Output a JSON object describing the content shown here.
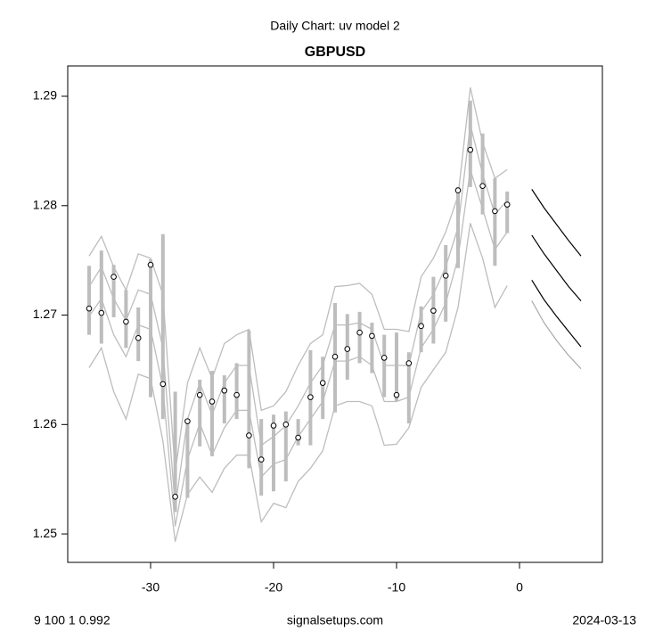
{
  "chart_data": {
    "type": "band-forecast",
    "subtitle": "Daily Chart: uv model 2",
    "title": "GBPUSD",
    "footer_left": "9 100 1 0.992",
    "footer_center": "signalsetups.com",
    "footer_right": "2024-03-13",
    "xlim": [
      -36.74,
      6.74
    ],
    "xticks": [
      -30,
      -20,
      -10,
      0
    ],
    "ylim": [
      1.2474,
      1.29277
    ],
    "yticks": [
      1.25,
      1.26,
      1.27,
      1.28,
      1.29
    ],
    "x": [
      -35,
      -34,
      -33,
      -32,
      -31,
      -30,
      -29,
      -28,
      -27,
      -26,
      -25,
      -24,
      -23,
      -22,
      -21,
      -20,
      -19,
      -18,
      -17,
      -16,
      -15,
      -14,
      -13,
      -12,
      -11,
      -10,
      -9,
      -8,
      -7,
      -6,
      -5,
      -4,
      -3,
      -2,
      -1
    ],
    "close": [
      1.2706,
      1.2702,
      1.2735,
      1.2694,
      1.2679,
      1.2746,
      1.2637,
      1.2534,
      1.2603,
      1.2627,
      1.2621,
      1.2631,
      1.2627,
      1.259,
      1.2568,
      1.2599,
      1.26,
      1.2588,
      1.2625,
      1.2638,
      1.2662,
      1.2669,
      1.2684,
      1.2681,
      1.2661,
      1.2627,
      1.2656,
      1.269,
      1.2704,
      1.2736,
      1.2814,
      1.2851,
      1.2818,
      1.2795,
      1.2801
    ],
    "high": [
      1.2745,
      1.2759,
      1.2746,
      1.2723,
      1.2707,
      1.2751,
      1.2774,
      1.263,
      1.2605,
      1.2641,
      1.2649,
      1.2645,
      1.2656,
      1.2686,
      1.2605,
      1.2609,
      1.2612,
      1.2605,
      1.2668,
      1.2662,
      1.2711,
      1.2701,
      1.2703,
      1.2693,
      1.2682,
      1.2684,
      1.2666,
      1.2708,
      1.2735,
      1.2764,
      1.2817,
      1.2896,
      1.2866,
      1.2825,
      1.2813
    ],
    "low": [
      1.2682,
      1.2674,
      1.2698,
      1.267,
      1.2658,
      1.2625,
      1.2605,
      1.252,
      1.2533,
      1.258,
      1.2571,
      1.2601,
      1.2605,
      1.256,
      1.2535,
      1.2539,
      1.2548,
      1.2581,
      1.2581,
      1.2605,
      1.2611,
      1.2641,
      1.2656,
      1.2647,
      1.2625,
      1.2621,
      1.2601,
      1.2666,
      1.2674,
      1.2694,
      1.2743,
      1.2817,
      1.2792,
      1.2745,
      1.2775
    ],
    "bands": [
      [
        1.2754,
        1.2772,
        1.2744,
        1.2723,
        1.2756,
        1.2752,
        1.2719,
        1.2556,
        1.2638,
        1.267,
        1.2642,
        1.2674,
        1.2682,
        1.2687,
        1.2613,
        1.2617,
        1.263,
        1.2654,
        1.2674,
        1.2682,
        1.2726,
        1.2727,
        1.2729,
        1.2719,
        1.2687,
        1.2687,
        1.2685,
        1.2735,
        1.2752,
        1.2776,
        1.2809,
        1.2908,
        1.2858,
        1.2825,
        1.2833
      ],
      [
        1.2726,
        1.2744,
        1.2715,
        1.2695,
        1.2723,
        1.2719,
        1.267,
        1.2524,
        1.2605,
        1.2638,
        1.2609,
        1.2638,
        1.2654,
        1.2654,
        1.2581,
        1.2589,
        1.2599,
        1.2617,
        1.2638,
        1.2654,
        1.2691,
        1.2691,
        1.2693,
        1.2687,
        1.2654,
        1.2654,
        1.2654,
        1.2703,
        1.2719,
        1.2744,
        1.278,
        1.2874,
        1.2829,
        1.2792,
        1.2805
      ],
      [
        1.2699,
        1.2715,
        1.2682,
        1.2662,
        1.2691,
        1.2687,
        1.2634,
        1.2507,
        1.2568,
        1.2601,
        1.2572,
        1.2597,
        1.2613,
        1.2613,
        1.2552,
        1.2564,
        1.2568,
        1.2589,
        1.2605,
        1.2621,
        1.2658,
        1.2658,
        1.2662,
        1.2654,
        1.2621,
        1.2621,
        1.2625,
        1.267,
        1.2687,
        1.2711,
        1.2752,
        1.2833,
        1.2797,
        1.276,
        1.2776
      ],
      [
        1.2652,
        1.267,
        1.263,
        1.2605,
        1.2646,
        1.2642,
        1.2585,
        1.2493,
        1.2536,
        1.2552,
        1.2538,
        1.256,
        1.2572,
        1.2572,
        1.2511,
        1.2528,
        1.2524,
        1.2548,
        1.256,
        1.2576,
        1.2617,
        1.2621,
        1.2621,
        1.2617,
        1.2581,
        1.2582,
        1.2597,
        1.2634,
        1.265,
        1.2666,
        1.2707,
        1.2784,
        1.2752,
        1.2707,
        1.2727
      ]
    ],
    "band_color": "#bdbdbd",
    "bar_color": "#bdbdbd",
    "forecast_x": [
      1,
      2,
      3,
      4,
      5
    ],
    "forecast": [
      {
        "color": "#000000",
        "values": [
          1.2815,
          1.2798,
          1.2783,
          1.2768,
          1.2754
        ]
      },
      {
        "color": "#000000",
        "values": [
          1.2773,
          1.2756,
          1.2741,
          1.2726,
          1.2713
        ]
      },
      {
        "color": "#000000",
        "values": [
          1.2732,
          1.2714,
          1.2699,
          1.2685,
          1.2671
        ]
      },
      {
        "color": "#aaaaaa",
        "values": [
          1.2713,
          1.2693,
          1.2677,
          1.2663,
          1.2651
        ]
      }
    ]
  }
}
